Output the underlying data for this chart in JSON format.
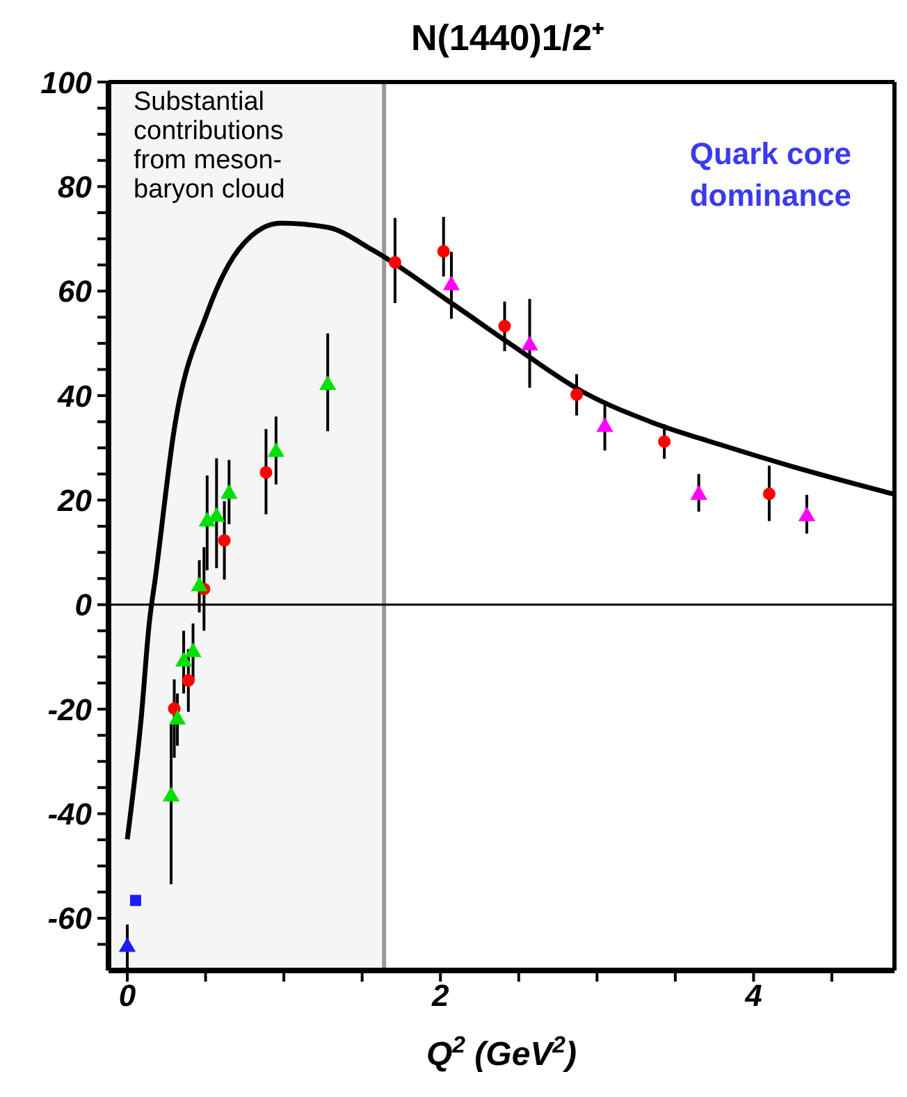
{
  "chart_data": {
    "type": "scatter",
    "title": "N(1440)1/2⁺",
    "xlabel": "Q$^{2}$ (GeV$^{2}$)",
    "xlim": [
      -0.12,
      4.9
    ],
    "ylim": [
      -70,
      100
    ],
    "xticks": [
      0,
      {
        "value": 0.5,
        "label": null
      },
      {
        "value": 1,
        "label": null
      },
      {
        "value": 1.5,
        "label": null
      },
      2,
      {
        "value": 2.5,
        "label": null
      },
      {
        "value": 3,
        "label": null
      },
      {
        "value": 3.5,
        "label": null
      },
      4,
      {
        "value": 4.5,
        "label": null
      }
    ],
    "yticks": [
      {
        "value": -65,
        "label": null
      },
      -60,
      {
        "value": -55,
        "label": null
      },
      {
        "value": -50,
        "label": null
      },
      {
        "value": -45,
        "label": null
      },
      -40,
      {
        "value": -35,
        "label": null
      },
      {
        "value": -30,
        "label": null
      },
      {
        "value": -25,
        "label": null
      },
      -20,
      {
        "value": -15,
        "label": null
      },
      {
        "value": -10,
        "label": null
      },
      {
        "value": -5,
        "label": null
      },
      0,
      {
        "value": 5,
        "label": null
      },
      {
        "value": 10,
        "label": null
      },
      {
        "value": 15,
        "label": null
      },
      20,
      {
        "value": 25,
        "label": null
      },
      {
        "value": 30,
        "label": null
      },
      {
        "value": 35,
        "label": null
      },
      40,
      {
        "value": 45,
        "label": null
      },
      {
        "value": 50,
        "label": null
      },
      {
        "value": 55,
        "label": null
      },
      60,
      {
        "value": 65,
        "label": null
      },
      {
        "value": 70,
        "label": null
      },
      {
        "value": 75,
        "label": null
      },
      80,
      {
        "value": 85,
        "label": null
      },
      {
        "value": 90,
        "label": null
      },
      {
        "value": 95,
        "label": null
      },
      100
    ],
    "series": [
      {
        "type": "line",
        "color": "#000000",
        "marker": "none",
        "x": [
          0.0,
          0.09,
          0.14,
          0.18,
          0.3,
          0.51,
          0.74,
          0.98,
          1.28,
          1.57,
          2.08,
          2.46,
          2.91,
          3.35,
          3.8,
          4.24,
          4.89
        ],
        "values": [
          -44.9,
          -21.3,
          -3.6,
          5.3,
          33.6,
          55.8,
          69,
          73,
          72.2,
          67.8,
          57.5,
          49.6,
          40.7,
          34.9,
          30.5,
          26.5,
          21.2
        ]
      },
      {
        "type": "scatter",
        "color": "#ff0000",
        "marker": "circle",
        "x": [
          0.3,
          0.39,
          0.49,
          0.62,
          0.886,
          1.71,
          2.02,
          2.41,
          2.87,
          3.43,
          4.1
        ],
        "values": [
          -19.9,
          -14.5,
          3.0,
          12.3,
          25.3,
          65.5,
          67.6,
          53.3,
          40.2,
          31.2,
          21.2
        ],
        "errors": [
          [
            -29.3,
            -14.3
          ],
          [
            -20.5,
            -8.5
          ],
          [
            -5,
            11
          ],
          [
            4.8,
            19.8
          ],
          [
            17.3,
            33.6
          ],
          [
            57.7,
            74
          ],
          [
            62.8,
            74.2
          ],
          [
            48.5,
            58
          ],
          [
            36.2,
            44.1
          ],
          [
            27.9,
            34.5
          ],
          [
            16,
            26.6
          ]
        ]
      },
      {
        "type": "scatter",
        "color": "#00e000",
        "marker": "triangle",
        "x": [
          0.28,
          0.32,
          0.36,
          0.42,
          0.46,
          0.51,
          0.57,
          0.65,
          0.95,
          1.28
        ],
        "values": [
          -36.7,
          -22,
          -10.9,
          -9.1,
          3.5,
          15.9,
          16.8,
          21.2,
          29.2,
          42.0
        ],
        "errors": [
          [
            -53.5,
            -22.7
          ],
          [
            -27,
            -17
          ],
          [
            -17,
            -5
          ],
          [
            -14.6,
            -3.6
          ],
          [
            -1.5,
            8.5
          ],
          [
            6.6,
            24.7
          ],
          [
            7,
            28
          ],
          [
            15.4,
            27.7
          ],
          [
            23,
            36
          ],
          [
            33.2,
            51.9
          ]
        ]
      },
      {
        "type": "scatter",
        "color": "#ff00ff",
        "marker": "triangle",
        "x": [
          2.07,
          2.57,
          3.05,
          3.65,
          4.34
        ],
        "values": [
          61.1,
          49.6,
          34.0,
          21.0,
          16.9
        ],
        "errors": [
          [
            54.7,
            67.5
          ],
          [
            41.5,
            58.5
          ],
          [
            29.5,
            38.8
          ],
          [
            17.8,
            25
          ],
          [
            13.6,
            21
          ]
        ]
      },
      {
        "type": "scatter",
        "color": "#1a1aff",
        "marker": "square",
        "x": [
          0.053
        ],
        "values": [
          -56.6
        ],
        "errors": [
          null
        ]
      },
      {
        "type": "scatter",
        "color": "#1a1aff",
        "marker": "triangle",
        "x": [
          0.0
        ],
        "values": [
          -65.5
        ],
        "errors": [
          [
            -69.8,
            -61.2
          ]
        ]
      }
    ],
    "ref_lines": [
      {
        "axis": "y",
        "value": 0,
        "color": "#000000"
      }
    ],
    "bands": [
      {
        "axis": "x",
        "from": -0.12,
        "to": 1.64,
        "label": "Substantial contributions from meson-baryon cloud",
        "color": "#f5f5f5"
      }
    ],
    "annotations": [
      "Quark core dominance"
    ]
  }
}
